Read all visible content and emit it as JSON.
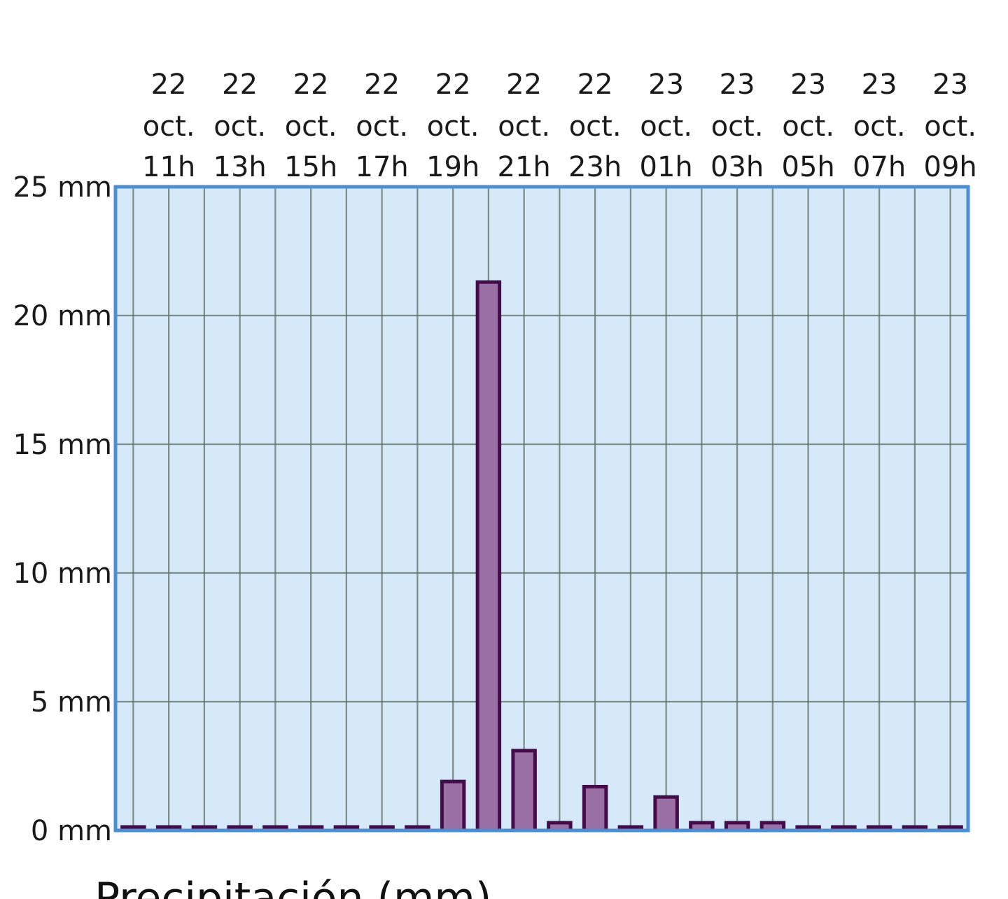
{
  "chart_data": {
    "type": "bar",
    "title": "Precipitación (mm)",
    "y_unit": "mm",
    "ylim": [
      0,
      25
    ],
    "y_ticks": [
      "0 mm",
      "5 mm",
      "10 mm",
      "15 mm",
      "20 mm",
      "25 mm"
    ],
    "y_tick_values": [
      0,
      5,
      10,
      15,
      20,
      25
    ],
    "grid": true,
    "x_tick_labels": [
      [
        "22",
        "oct.",
        "11h"
      ],
      [
        "22",
        "oct.",
        "13h"
      ],
      [
        "22",
        "oct.",
        "15h"
      ],
      [
        "22",
        "oct.",
        "17h"
      ],
      [
        "22",
        "oct.",
        "19h"
      ],
      [
        "22",
        "oct.",
        "21h"
      ],
      [
        "22",
        "oct.",
        "23h"
      ],
      [
        "23",
        "oct.",
        "01h"
      ],
      [
        "23",
        "oct.",
        "03h"
      ],
      [
        "23",
        "oct.",
        "05h"
      ],
      [
        "23",
        "oct.",
        "07h"
      ],
      [
        "23",
        "oct.",
        "09h"
      ]
    ],
    "values": [
      0,
      0,
      0,
      0,
      0,
      0,
      0,
      0,
      0,
      1.9,
      21.3,
      3.1,
      0.3,
      1.7,
      0,
      1.3,
      0.3,
      0.3,
      0.3,
      0,
      0,
      0,
      0,
      0
    ],
    "colors": {
      "plot_background": "#d6e9f9",
      "plot_border": "#4a8fd4",
      "grid": "#5d6e5d",
      "bar_fill": "#9a6fa4",
      "bar_stroke": "#450a4a"
    }
  }
}
